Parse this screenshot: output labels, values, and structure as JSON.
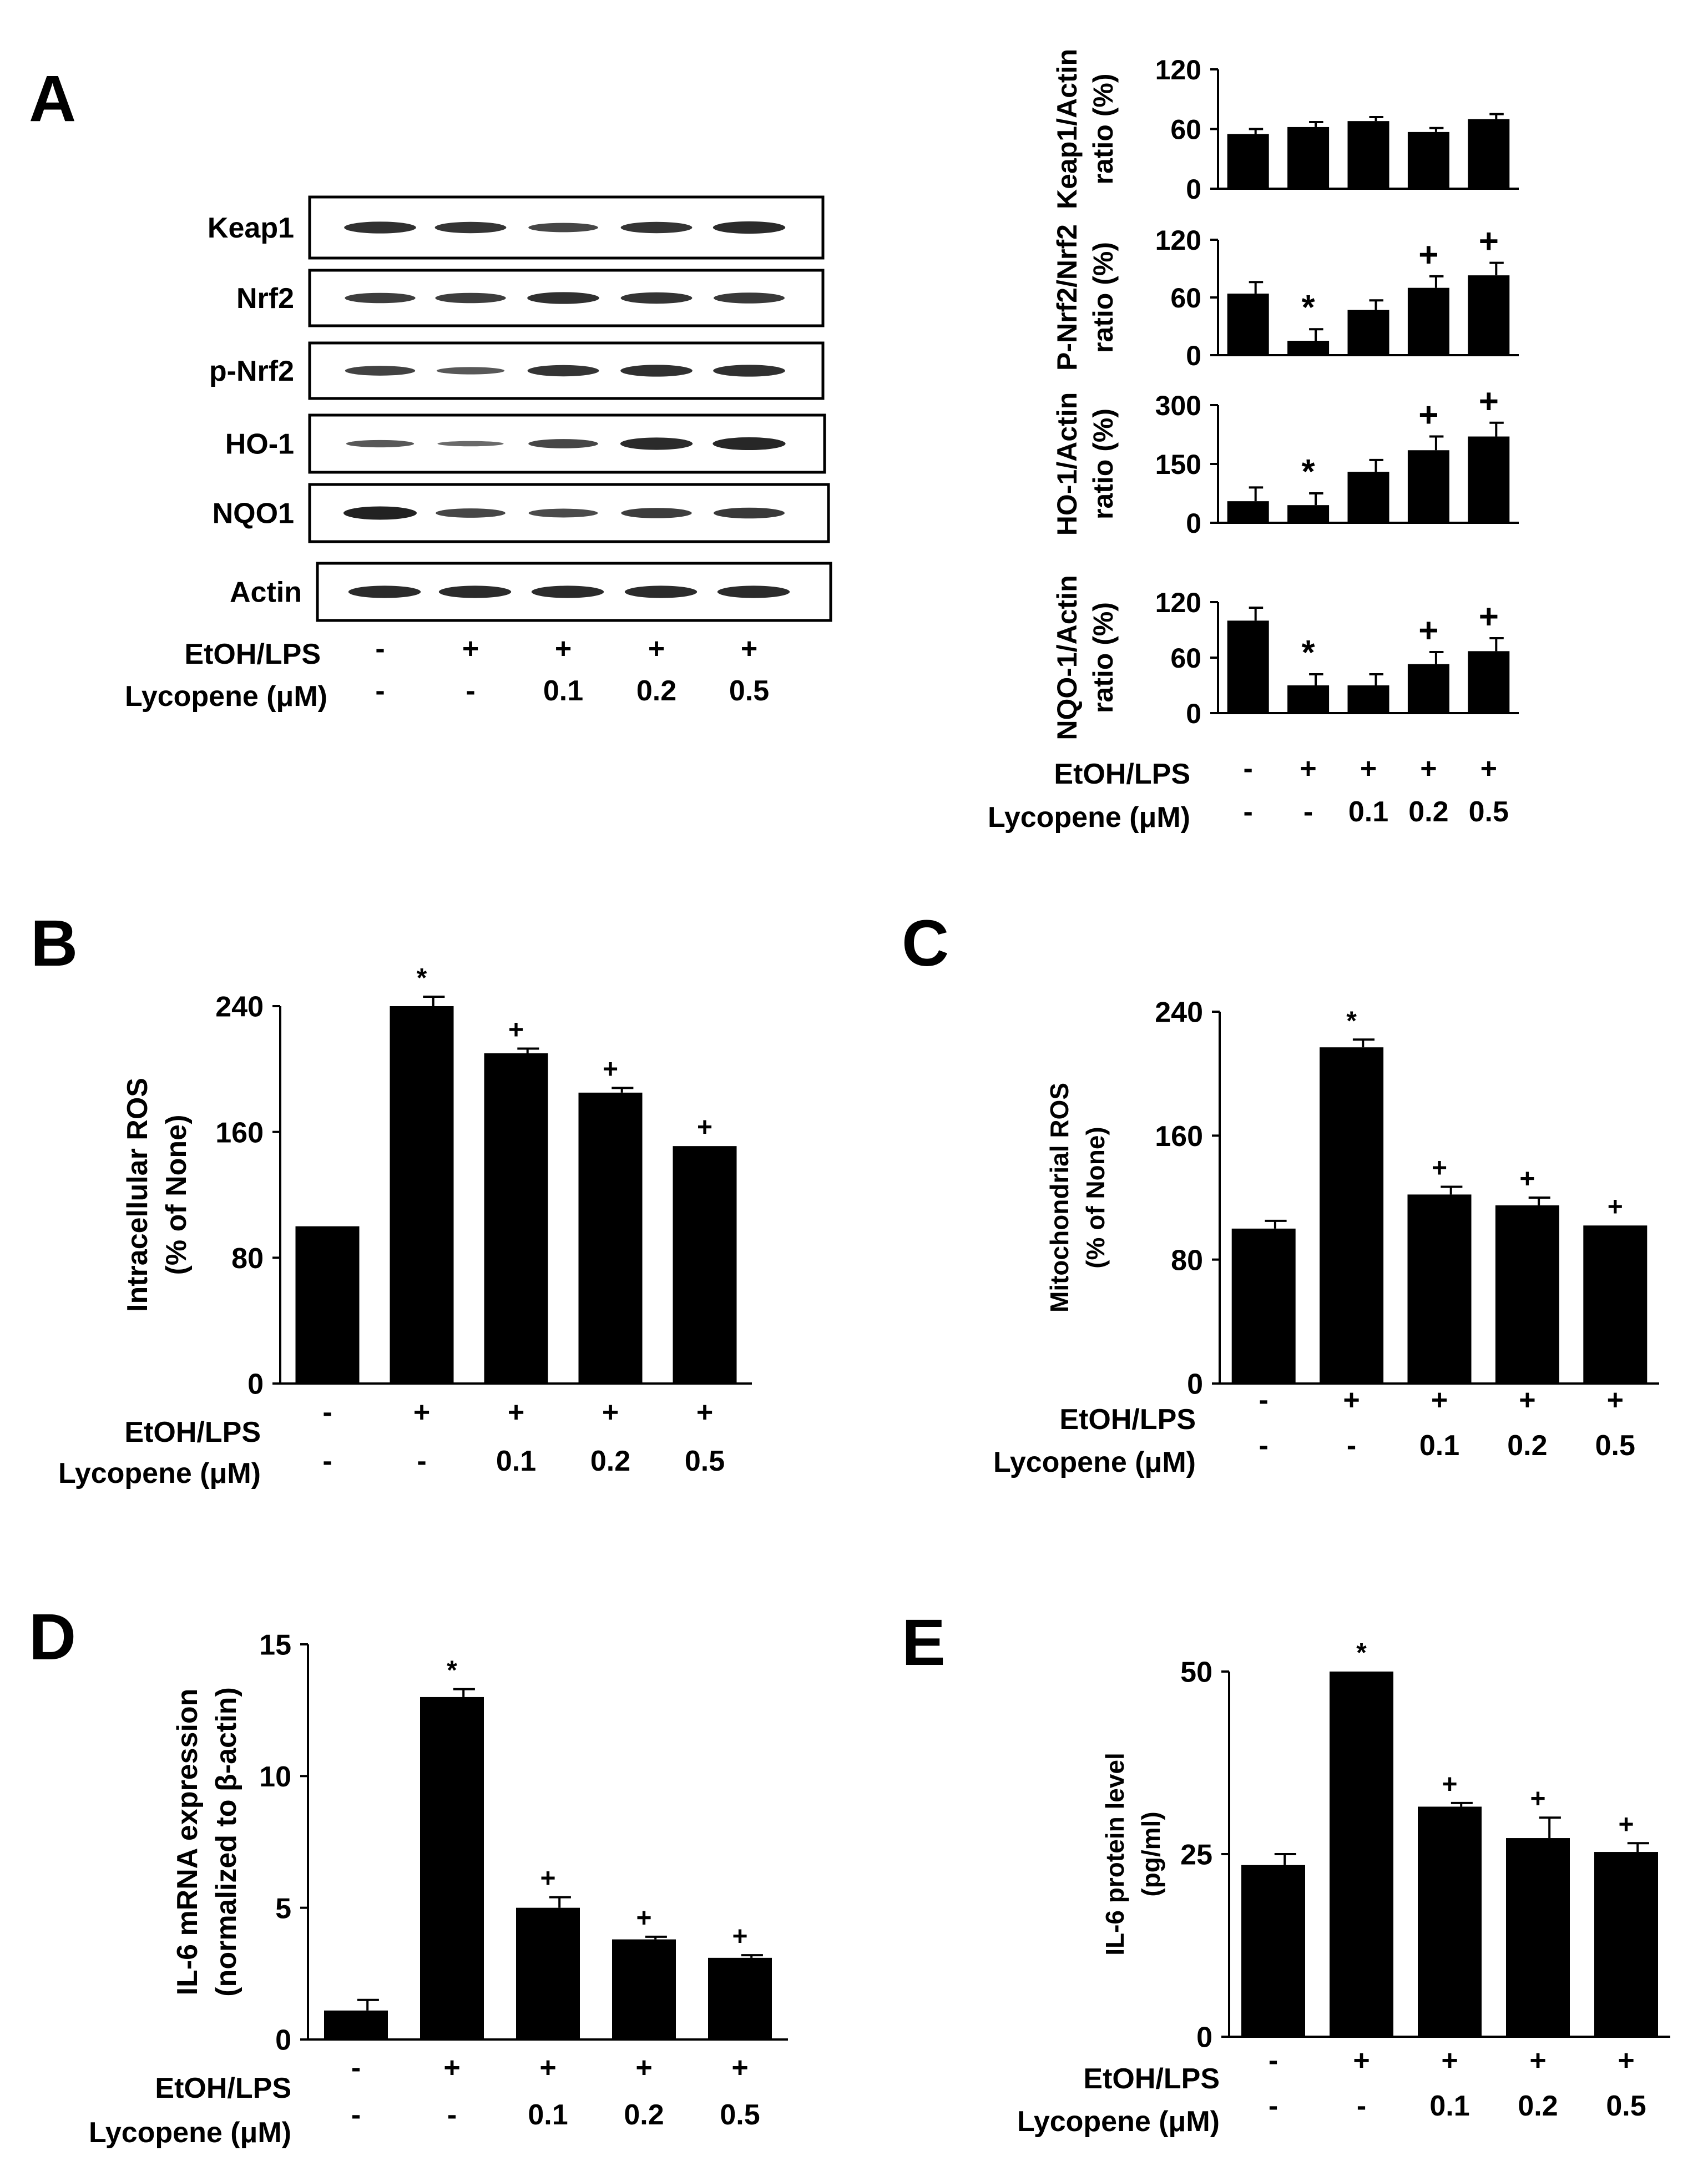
{
  "panels": {
    "A": "A",
    "B": "B",
    "C": "C",
    "D": "D",
    "E": "E"
  },
  "conditions": {
    "row1_label": "EtOH/LPS",
    "row2_label": "Lycopene (μM)",
    "etoh": [
      "-",
      "+",
      "+",
      "+",
      "+"
    ],
    "lyco": [
      "-",
      "-",
      "0.1",
      "0.2",
      "0.5"
    ]
  },
  "blot": {
    "bands": [
      {
        "label": "Keap1",
        "intensity": [
          0.85,
          0.8,
          0.6,
          0.8,
          0.9
        ]
      },
      {
        "label": "Nrf2",
        "intensity": [
          0.7,
          0.7,
          0.85,
          0.8,
          0.75
        ]
      },
      {
        "label": "p-Nrf2",
        "intensity": [
          0.65,
          0.4,
          0.8,
          0.85,
          0.85
        ]
      },
      {
        "label": "HO-1",
        "intensity": [
          0.4,
          0.2,
          0.6,
          0.9,
          0.95
        ]
      },
      {
        "label": "NQO1",
        "intensity": [
          1.0,
          0.6,
          0.55,
          0.7,
          0.75
        ]
      },
      {
        "label": "Actin",
        "intensity": [
          0.9,
          0.9,
          0.9,
          0.9,
          0.9
        ]
      }
    ]
  },
  "chart_data": [
    {
      "id": "A1",
      "type": "bar",
      "categories": [
        "-",
        "+",
        "+",
        "+",
        "+"
      ],
      "values": [
        55,
        62,
        68,
        57,
        70
      ],
      "errors": [
        5,
        5,
        4,
        4,
        5
      ],
      "ylim": [
        0,
        120
      ],
      "yticks": [
        "0",
        "60",
        "120"
      ],
      "ylabel": [
        "Keap1/Actin",
        "ratio (%)"
      ],
      "annotations": [
        "",
        "",
        "",
        "",
        ""
      ]
    },
    {
      "id": "A2",
      "type": "bar",
      "categories": [
        "-",
        "+",
        "+",
        "+",
        "+"
      ],
      "values": [
        64,
        15,
        47,
        70,
        83
      ],
      "errors": [
        12,
        12,
        10,
        12,
        13
      ],
      "ylim": [
        0,
        120
      ],
      "yticks": [
        "0",
        "60",
        "120"
      ],
      "ylabel": [
        "P-Nrf2/Nrf2",
        "ratio (%)"
      ],
      "annotations": [
        "",
        "*",
        "",
        "+",
        "+"
      ]
    },
    {
      "id": "A3",
      "type": "bar",
      "categories": [
        "-",
        "+",
        "+",
        "+",
        "+"
      ],
      "values": [
        55,
        45,
        130,
        185,
        220
      ],
      "errors": [
        35,
        30,
        30,
        35,
        35
      ],
      "ylim": [
        0,
        300
      ],
      "yticks": [
        "0",
        "150",
        "300"
      ],
      "ylabel": [
        "HO-1/Actin",
        "ratio (%)"
      ],
      "annotations": [
        "",
        "*",
        "",
        "+",
        "+"
      ]
    },
    {
      "id": "A4",
      "type": "bar",
      "categories": [
        "-",
        "+",
        "+",
        "+",
        "+"
      ],
      "values": [
        100,
        30,
        30,
        53,
        67
      ],
      "errors": [
        14,
        12,
        12,
        13,
        14
      ],
      "ylim": [
        0,
        120
      ],
      "yticks": [
        "0",
        "60",
        "120"
      ],
      "ylabel": [
        "NQO-1/Actin",
        "ratio (%)"
      ],
      "annotations": [
        "",
        "*",
        "",
        "+",
        "+"
      ]
    },
    {
      "id": "B",
      "type": "bar",
      "categories": [
        "-",
        "+",
        "+",
        "+",
        "+"
      ],
      "values": [
        100,
        240,
        210,
        185,
        151
      ],
      "errors": [
        0,
        6,
        3,
        3,
        0
      ],
      "ylim": [
        0,
        240
      ],
      "yticks": [
        "0",
        "80",
        "160",
        "240"
      ],
      "ylabel": [
        "Intracellular ROS",
        "(% of None)"
      ],
      "annotations": [
        "",
        "*",
        "+",
        "+",
        "+"
      ]
    },
    {
      "id": "C",
      "type": "bar",
      "categories": [
        "-",
        "+",
        "+",
        "+",
        "+"
      ],
      "values": [
        100,
        217,
        122,
        115,
        102
      ],
      "errors": [
        5,
        5,
        5,
        5,
        0
      ],
      "ylim": [
        0,
        240
      ],
      "yticks": [
        "0",
        "80",
        "160",
        "240"
      ],
      "ylabel": [
        "Mitochondrial ROS",
        "(% of None)"
      ],
      "annotations": [
        "",
        "*",
        "+",
        "+",
        "+"
      ]
    },
    {
      "id": "D",
      "type": "bar",
      "categories": [
        "-",
        "+",
        "+",
        "+",
        "+"
      ],
      "values": [
        1.1,
        13.0,
        5.0,
        3.8,
        3.1
      ],
      "errors": [
        0.4,
        0.3,
        0.4,
        0.1,
        0.1
      ],
      "ylim": [
        0,
        15
      ],
      "yticks": [
        "0",
        "5",
        "10",
        "15"
      ],
      "ylabel": [
        "IL-6 mRNA expression",
        "(normalized to β-actin)"
      ],
      "annotations": [
        "",
        "*",
        "+",
        "+",
        "+"
      ]
    },
    {
      "id": "E",
      "type": "bar",
      "categories": [
        "-",
        "+",
        "+",
        "+",
        "+"
      ],
      "values": [
        23.5,
        50,
        31.5,
        27.2,
        25.3
      ],
      "errors": [
        1.5,
        0,
        0.5,
        2.8,
        1.2
      ],
      "ylim": [
        0,
        50
      ],
      "yticks": [
        "0",
        "25",
        "50"
      ],
      "ylabel": [
        "IL-6 protein level",
        "(pg/ml)"
      ],
      "annotations": [
        "",
        "*",
        "+",
        "+",
        "+"
      ]
    }
  ]
}
